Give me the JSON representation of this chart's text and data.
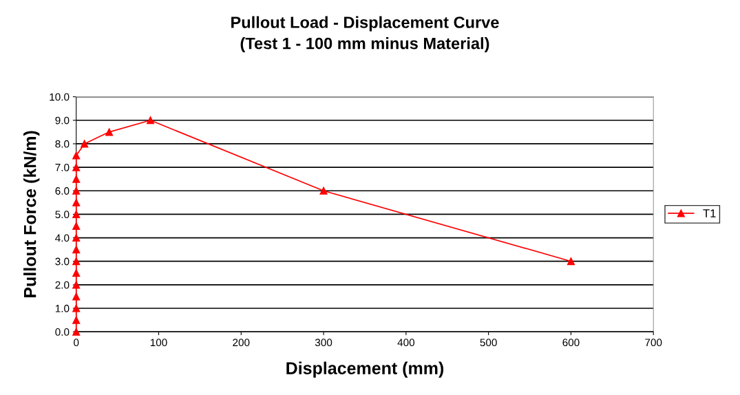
{
  "chart_data": {
    "type": "line",
    "title": "Pullout Load - Displacement Curve\n(Test 1 - 100 mm minus Material)",
    "xlabel": "Displacement (mm)",
    "ylabel": "Pullout Force (kN/m)",
    "series": [
      {
        "name": "T1",
        "color": "#ff0000",
        "x": [
          0,
          0,
          0,
          0,
          0,
          0,
          0,
          0,
          0,
          0,
          0,
          0,
          0,
          0,
          0,
          0,
          10,
          40,
          90,
          300,
          600
        ],
        "values": [
          0,
          0.5,
          1.0,
          1.5,
          2.0,
          2.5,
          3.0,
          3.5,
          4.0,
          4.5,
          5.0,
          5.5,
          6.0,
          6.5,
          7.0,
          7.5,
          8.0,
          8.5,
          9.0,
          6.0,
          3.0
        ]
      }
    ],
    "xlim": [
      0,
      700
    ],
    "xticks": [
      0,
      100,
      200,
      300,
      400,
      500,
      600,
      700
    ],
    "ylim": [
      0,
      10
    ],
    "yticks": [
      {
        "value": 0,
        "label": "0.0"
      },
      {
        "value": 1,
        "label": "1.0"
      },
      {
        "value": 2,
        "label": "2.0"
      },
      {
        "value": 3,
        "label": "3.0"
      },
      {
        "value": 4,
        "label": "4.0"
      },
      {
        "value": 5,
        "label": "5.0"
      },
      {
        "value": 6,
        "label": "6.0"
      },
      {
        "value": 7,
        "label": "7.0"
      },
      {
        "value": 8,
        "label": "8.0"
      },
      {
        "value": 9,
        "label": "9.0"
      },
      {
        "value": 10,
        "label": "10.0"
      }
    ],
    "grid": "y",
    "legend": "right",
    "marker": "triangle",
    "line_style": "solid"
  }
}
